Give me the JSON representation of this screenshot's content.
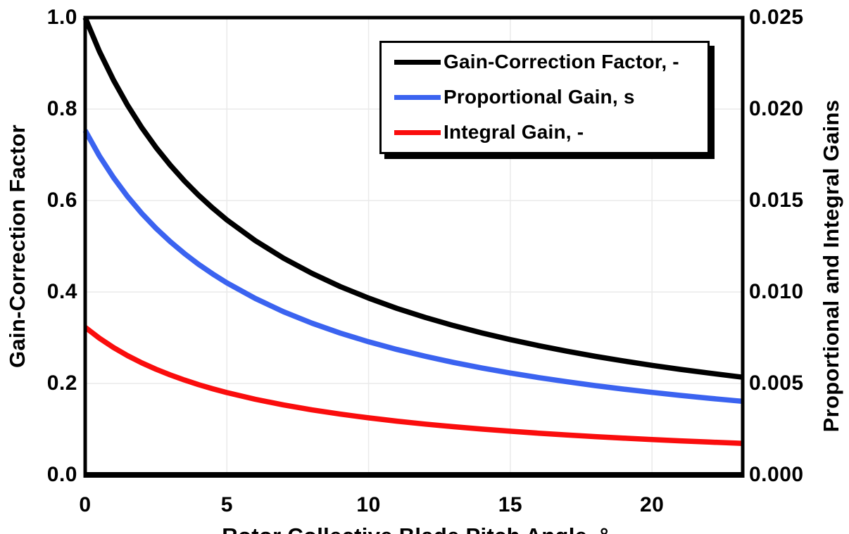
{
  "chart_data": {
    "type": "line",
    "title": "",
    "xlabel": "Rotor Collective Blade Pitch Angle, °",
    "ylabel_left": "Gain-Correction Factor",
    "ylabel_right": "Proportional and Integral Gains",
    "xlim": [
      0,
      23.2
    ],
    "ylim_left": [
      0,
      1.0
    ],
    "ylim_right": [
      0,
      0.025
    ],
    "x_ticks": [
      0,
      5,
      10,
      15,
      20
    ],
    "y_ticks_left": [
      "1.0",
      "0.8",
      "0.6",
      "0.4",
      "0.2",
      "0.0"
    ],
    "y_ticks_right": [
      "0.025",
      "0.020",
      "0.015",
      "0.010",
      "0.005",
      "0.000"
    ],
    "grid": true,
    "legend_position": "inside-top-right",
    "x": [
      0,
      0.5,
      1,
      1.5,
      2,
      2.5,
      3,
      3.5,
      4,
      4.5,
      5,
      6,
      7,
      8,
      9,
      10,
      11,
      12,
      13,
      14,
      15,
      16,
      17,
      18,
      19,
      20,
      21,
      22,
      23,
      23.2
    ],
    "series": [
      {
        "name": "Gain-Correction Factor, -",
        "axis": "left",
        "color": "#000000",
        "values": [
          1.0,
          0.9265,
          0.8631,
          0.8078,
          0.7591,
          0.716,
          0.6775,
          0.6429,
          0.6117,
          0.5834,
          0.5576,
          0.5123,
          0.4738,
          0.4407,
          0.4119,
          0.3866,
          0.3642,
          0.3443,
          0.3265,
          0.3104,
          0.2959,
          0.2826,
          0.2705,
          0.2593,
          0.2491,
          0.2396,
          0.2308,
          0.2227,
          0.2151,
          0.2136
        ]
      },
      {
        "name": "Proportional Gain, s",
        "axis": "right",
        "color": "#3B63F0",
        "values": [
          0.018827,
          0.017443,
          0.016249,
          0.015207,
          0.014291,
          0.013479,
          0.012755,
          0.012104,
          0.011517,
          0.010984,
          0.010498,
          0.009645,
          0.00892,
          0.008296,
          0.007754,
          0.007278,
          0.006858,
          0.006483,
          0.006147,
          0.005844,
          0.00557,
          0.00532,
          0.005092,
          0.004882,
          0.004689,
          0.004511,
          0.004346,
          0.004192,
          0.004049,
          0.004022
        ]
      },
      {
        "name": "Integral Gain, -",
        "axis": "right",
        "color": "#FA0D0D",
        "values": [
          0.008069,
          0.007476,
          0.006963,
          0.006517,
          0.006125,
          0.005777,
          0.005467,
          0.005188,
          0.004936,
          0.004707,
          0.004499,
          0.004133,
          0.003823,
          0.003555,
          0.003323,
          0.003119,
          0.002939,
          0.002778,
          0.002634,
          0.002505,
          0.002387,
          0.00228,
          0.002182,
          0.002092,
          0.00201,
          0.001933,
          0.001862,
          0.001797,
          0.001735,
          0.001724
        ]
      }
    ]
  },
  "legend": {
    "items": [
      {
        "label": "Gain-Correction Factor, -",
        "color": "#000000"
      },
      {
        "label": "Proportional Gain, s",
        "color": "#3B63F0"
      },
      {
        "label": "Integral Gain, -",
        "color": "#FA0D0D"
      }
    ]
  },
  "colors": {
    "background": "#FFFFFF",
    "frame": "#000000",
    "grid": "#EAEAEA"
  }
}
